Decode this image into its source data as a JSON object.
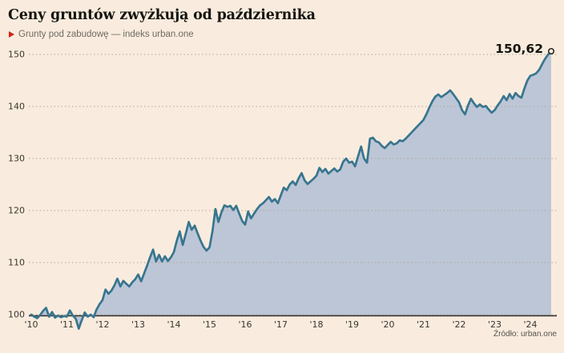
{
  "header": {
    "title": "Ceny gruntów zwyżkują od października",
    "legend_label": "Grunty pod zabudowę — indeks urban.one"
  },
  "source": "Źródło: urban.one",
  "colors": {
    "background": "#f9ecde",
    "line": "#38758f",
    "area_fill": "#bcc6d7",
    "accent_red": "#d42318",
    "grid": "#b3a694",
    "axis": "#2e2a25",
    "text_dark": "#15130f",
    "text_muted": "#6f6a61",
    "tick_text": "#3b362e"
  },
  "chart_data": {
    "type": "area",
    "title": "Ceny gruntów zwyżkują od października",
    "series_name": "Grunty pod zabudowę — indeks urban.one",
    "frequency": "monthly",
    "x_start": "2010-01",
    "x_end": "2024-08",
    "xlabel": "",
    "ylabel": "indeks urban.one",
    "ylim": [
      96,
      152
    ],
    "grid": "dotted-horizontal",
    "legend_position": "top-left",
    "y_ticks": [
      100,
      110,
      120,
      130,
      140,
      150
    ],
    "x_tick_labels": [
      "'10",
      "'11",
      "'12",
      "'13",
      "'14",
      "'15",
      "'16",
      "'17",
      "'18",
      "'19",
      "'20",
      "'21",
      "'22",
      "'23",
      "'24"
    ],
    "last_value": 150.62,
    "last_value_label": "150,62",
    "values": [
      100,
      99.6,
      99.3,
      99.9,
      100.7,
      101.3,
      99.6,
      100.5,
      99.4,
      99.8,
      99.5,
      99.7,
      99.6,
      100.8,
      99.8,
      99.2,
      97.3,
      98.9,
      100.4,
      99.6,
      100,
      99.5,
      101,
      102,
      102.8,
      104.8,
      104,
      104.6,
      105.6,
      106.9,
      105.4,
      106.5,
      105.9,
      105.4,
      106.2,
      106.8,
      107.7,
      106.4,
      107.9,
      109.4,
      111,
      112.5,
      110.2,
      111.5,
      110.2,
      111.2,
      110.3,
      111,
      112,
      114.2,
      116,
      113.4,
      115.5,
      117.8,
      116.3,
      117.1,
      115.6,
      114.2,
      113,
      112.3,
      112.9,
      116,
      120.3,
      117.8,
      119.6,
      121,
      120.7,
      120.9,
      120.1,
      120.9,
      119.4,
      118,
      117.3,
      119.8,
      118.5,
      119.4,
      120.3,
      121,
      121.4,
      122,
      122.6,
      121.7,
      122.2,
      121.4,
      122.9,
      124.4,
      123.9,
      125,
      125.6,
      124.9,
      126.2,
      127.2,
      125.8,
      125.1,
      125.6,
      126.1,
      126.7,
      128.2,
      127.4,
      128,
      127.1,
      127.6,
      128.1,
      127.5,
      127.9,
      129.4,
      130,
      129.2,
      129.4,
      128.5,
      130.4,
      132.3,
      130,
      129.2,
      133.8,
      134,
      133.3,
      133.1,
      132.4,
      132,
      132.6,
      133.2,
      132.7,
      132.9,
      133.5,
      133.3,
      133.8,
      134.4,
      135,
      135.6,
      136.2,
      136.8,
      137.4,
      138.5,
      139.8,
      141,
      141.9,
      142.3,
      141.8,
      142.2,
      142.6,
      143.1,
      142.4,
      141.6,
      140.8,
      139.3,
      138.5,
      140.2,
      141.5,
      140.6,
      139.9,
      140.4,
      139.9,
      140.1,
      139.4,
      138.8,
      139.3,
      140.2,
      141,
      142,
      141.2,
      142.4,
      141.5,
      142.6,
      142,
      141.7,
      143.5,
      145,
      145.9,
      146.1,
      146.4,
      147.1,
      148.2,
      149.2,
      150,
      150.62
    ]
  }
}
